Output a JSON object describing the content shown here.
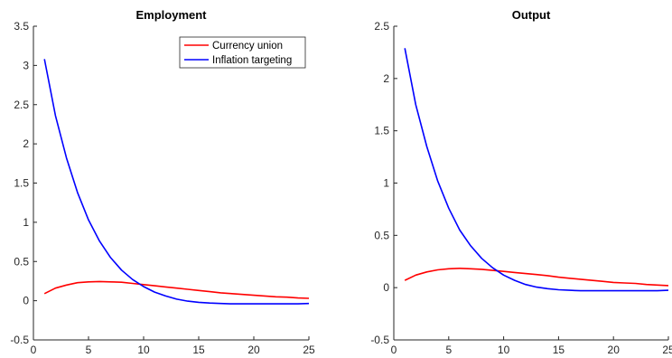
{
  "chart_data": [
    {
      "type": "line",
      "title": "Employment",
      "xlabel": "",
      "ylabel": "",
      "xlim": [
        0,
        25
      ],
      "ylim": [
        -0.5,
        3.5
      ],
      "xticks": [
        "0",
        "5",
        "10",
        "15",
        "20",
        "25"
      ],
      "yticks": [
        "-0.5",
        "0",
        "0.5",
        "1",
        "1.5",
        "2",
        "2.5",
        "3",
        "3.5"
      ],
      "grid": false,
      "legend": "top-right",
      "x": [
        1,
        2,
        3,
        4,
        5,
        6,
        7,
        8,
        9,
        10,
        11,
        12,
        13,
        14,
        15,
        16,
        17,
        18,
        19,
        20,
        21,
        22,
        23,
        24,
        25
      ],
      "series": [
        {
          "name": "Currency union",
          "color": "#ff0000",
          "values": [
            0.09,
            0.16,
            0.2,
            0.23,
            0.24,
            0.245,
            0.24,
            0.235,
            0.22,
            0.205,
            0.19,
            0.175,
            0.16,
            0.145,
            0.13,
            0.115,
            0.1,
            0.09,
            0.08,
            0.07,
            0.06,
            0.05,
            0.045,
            0.035,
            0.03
          ]
        },
        {
          "name": "Inflation targeting",
          "color": "#0000ff",
          "values": [
            3.08,
            2.36,
            1.82,
            1.38,
            1.03,
            0.76,
            0.55,
            0.39,
            0.27,
            0.18,
            0.11,
            0.06,
            0.02,
            -0.005,
            -0.02,
            -0.03,
            -0.035,
            -0.04,
            -0.04,
            -0.04,
            -0.04,
            -0.04,
            -0.04,
            -0.04,
            -0.035
          ]
        }
      ]
    },
    {
      "type": "line",
      "title": "Output",
      "xlabel": "",
      "ylabel": "",
      "xlim": [
        0,
        25
      ],
      "ylim": [
        -0.5,
        2.5
      ],
      "xticks": [
        "0",
        "5",
        "10",
        "15",
        "20",
        "25"
      ],
      "yticks": [
        "-0.5",
        "0",
        "0.5",
        "1",
        "1.5",
        "2",
        "2.5"
      ],
      "grid": false,
      "x": [
        1,
        2,
        3,
        4,
        5,
        6,
        7,
        8,
        9,
        10,
        11,
        12,
        13,
        14,
        15,
        16,
        17,
        18,
        19,
        20,
        21,
        22,
        23,
        24,
        25
      ],
      "series": [
        {
          "color": "#ff0000",
          "values": [
            0.07,
            0.12,
            0.15,
            0.17,
            0.18,
            0.185,
            0.18,
            0.175,
            0.165,
            0.155,
            0.145,
            0.135,
            0.125,
            0.115,
            0.1,
            0.09,
            0.08,
            0.07,
            0.06,
            0.05,
            0.045,
            0.04,
            0.03,
            0.025,
            0.02
          ]
        },
        {
          "color": "#0000ff",
          "values": [
            2.29,
            1.75,
            1.35,
            1.02,
            0.76,
            0.55,
            0.4,
            0.28,
            0.19,
            0.12,
            0.07,
            0.03,
            0.005,
            -0.01,
            -0.02,
            -0.025,
            -0.03,
            -0.03,
            -0.03,
            -0.03,
            -0.03,
            -0.03,
            -0.03,
            -0.03,
            -0.025
          ]
        }
      ]
    }
  ]
}
